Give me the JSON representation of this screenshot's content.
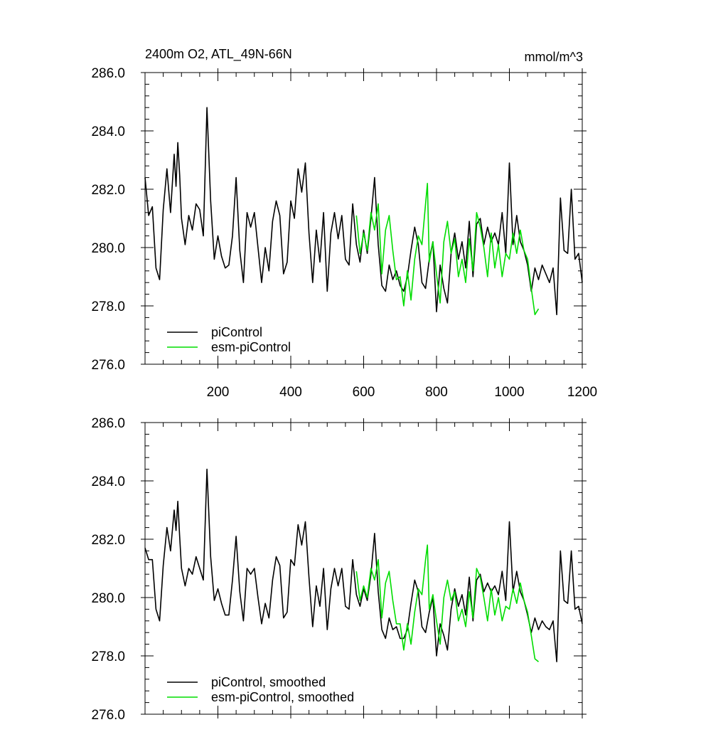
{
  "header": {
    "title": "2400m O2, ATL_49N-66N",
    "units": "mmol/m^3"
  },
  "colors": {
    "piControl": "#000000",
    "esm_piControl": "#00dd00"
  },
  "chart_data": [
    {
      "type": "line",
      "title": "2400m O2, ATL_49N-66N",
      "ylabel": "mmol/m^3",
      "xlim": [
        0,
        1200
      ],
      "ylim": [
        276,
        286
      ],
      "xticks": [
        "200",
        "400",
        "600",
        "800",
        "1000",
        "1200"
      ],
      "yticks": [
        "286.0",
        "284.0",
        "282.0",
        "280.0",
        "278.0",
        "276.0"
      ],
      "legend_position": "bottom-left",
      "series": [
        {
          "name": "piControl",
          "color": "#000000",
          "x": [
            0,
            10,
            20,
            30,
            40,
            50,
            60,
            70,
            80,
            85,
            90,
            95,
            100,
            110,
            120,
            130,
            140,
            150,
            160,
            170,
            180,
            190,
            200,
            210,
            220,
            230,
            240,
            250,
            260,
            270,
            280,
            290,
            300,
            310,
            320,
            330,
            340,
            350,
            360,
            370,
            380,
            390,
            400,
            410,
            420,
            430,
            440,
            450,
            460,
            470,
            480,
            490,
            500,
            510,
            520,
            530,
            540,
            550,
            560,
            570,
            580,
            590,
            600,
            610,
            620,
            630,
            640,
            650,
            660,
            670,
            680,
            690,
            700,
            710,
            720,
            730,
            740,
            750,
            760,
            770,
            780,
            790,
            800,
            810,
            820,
            830,
            840,
            850,
            860,
            870,
            880,
            890,
            900,
            910,
            920,
            930,
            940,
            950,
            960,
            970,
            980,
            990,
            1000,
            1010,
            1020,
            1030,
            1040,
            1050,
            1060,
            1070,
            1080,
            1090,
            1100,
            1110,
            1120,
            1130,
            1140,
            1150,
            1160,
            1170,
            1180,
            1190,
            1200
          ],
          "y": [
            282.4,
            281.1,
            281.4,
            279.3,
            278.9,
            281.3,
            282.7,
            281.2,
            283.2,
            282.1,
            283.6,
            282.5,
            281.0,
            280.1,
            281.1,
            280.6,
            281.5,
            281.3,
            280.4,
            284.8,
            281.6,
            279.6,
            280.4,
            279.7,
            279.3,
            279.4,
            280.4,
            282.4,
            279.9,
            278.8,
            281.2,
            280.7,
            281.2,
            280.0,
            278.8,
            280.0,
            279.2,
            280.9,
            281.6,
            281.1,
            279.1,
            279.5,
            281.6,
            281.0,
            282.7,
            281.9,
            282.9,
            280.5,
            278.8,
            280.6,
            279.5,
            281.2,
            278.5,
            280.5,
            281.2,
            280.3,
            281.1,
            279.6,
            279.4,
            281.5,
            280.1,
            279.5,
            280.6,
            279.8,
            281.0,
            282.4,
            280.1,
            278.7,
            278.5,
            279.4,
            278.9,
            279.2,
            278.7,
            278.5,
            279.0,
            279.9,
            280.7,
            280.1,
            278.8,
            278.6,
            279.6,
            280.2,
            277.8,
            279.4,
            278.6,
            278.1,
            279.8,
            280.5,
            279.6,
            280.2,
            279.3,
            280.9,
            279.0,
            280.8,
            281.0,
            280.1,
            280.7,
            280.2,
            280.5,
            280.1,
            281.2,
            279.8,
            282.9,
            280.1,
            281.1,
            280.2,
            279.9,
            279.4,
            278.5,
            279.3,
            278.9,
            279.4,
            279.1,
            278.8,
            279.3,
            277.7,
            281.7,
            279.9,
            279.8,
            282.0,
            279.6,
            279.8,
            278.8
          ]
        },
        {
          "name": "esm-piControl",
          "color": "#00dd00",
          "x": [
            580,
            590,
            600,
            610,
            620,
            630,
            640,
            650,
            660,
            670,
            680,
            690,
            700,
            710,
            720,
            730,
            740,
            750,
            760,
            770,
            775,
            780,
            790,
            800,
            810,
            820,
            830,
            840,
            850,
            860,
            870,
            880,
            890,
            900,
            910,
            920,
            930,
            940,
            950,
            960,
            970,
            980,
            990,
            1000,
            1010,
            1020,
            1030,
            1040,
            1050,
            1060,
            1070,
            1080
          ],
          "y": [
            281.1,
            279.8,
            280.5,
            279.9,
            281.2,
            280.6,
            281.5,
            279.1,
            280.6,
            281.1,
            279.9,
            278.9,
            279.0,
            278.0,
            279.2,
            278.2,
            279.6,
            280.4,
            280.1,
            281.5,
            282.2,
            279.5,
            280.2,
            279.1,
            278.1,
            280.2,
            280.9,
            279.8,
            280.3,
            279.0,
            279.6,
            278.8,
            280.3,
            279.2,
            281.2,
            280.7,
            280.0,
            279.0,
            280.5,
            279.3,
            280.1,
            279.0,
            279.8,
            279.6,
            280.5,
            279.8,
            280.6,
            279.9,
            279.6,
            278.6,
            277.7,
            277.9
          ]
        }
      ]
    },
    {
      "type": "line",
      "title": "",
      "ylabel": "",
      "xlim": [
        0,
        1200
      ],
      "ylim": [
        276,
        286
      ],
      "xticks": [],
      "yticks": [
        "286.0",
        "284.0",
        "282.0",
        "280.0",
        "278.0",
        "276.0"
      ],
      "legend_position": "bottom-left",
      "series": [
        {
          "name": "piControl, smoothed",
          "color": "#000000",
          "x": [
            0,
            10,
            20,
            30,
            40,
            50,
            60,
            70,
            80,
            85,
            90,
            95,
            100,
            110,
            120,
            130,
            140,
            150,
            160,
            170,
            180,
            190,
            200,
            210,
            220,
            230,
            240,
            250,
            260,
            270,
            280,
            290,
            300,
            310,
            320,
            330,
            340,
            350,
            360,
            370,
            380,
            390,
            400,
            410,
            420,
            430,
            440,
            450,
            460,
            470,
            480,
            490,
            500,
            510,
            520,
            530,
            540,
            550,
            560,
            570,
            580,
            590,
            600,
            610,
            620,
            630,
            640,
            650,
            660,
            670,
            680,
            690,
            700,
            710,
            720,
            730,
            740,
            750,
            760,
            770,
            780,
            790,
            800,
            810,
            820,
            830,
            840,
            850,
            860,
            870,
            880,
            890,
            900,
            910,
            920,
            930,
            940,
            950,
            960,
            970,
            980,
            990,
            1000,
            1010,
            1020,
            1030,
            1040,
            1050,
            1060,
            1070,
            1080,
            1090,
            1100,
            1110,
            1120,
            1130,
            1140,
            1150,
            1160,
            1170,
            1180,
            1190,
            1200
          ],
          "y": [
            281.7,
            281.3,
            281.3,
            279.6,
            279.2,
            281.1,
            282.4,
            281.6,
            283.0,
            282.3,
            283.3,
            282.1,
            281.0,
            280.4,
            281.0,
            280.8,
            281.4,
            281.0,
            280.6,
            284.4,
            281.4,
            279.9,
            280.3,
            279.8,
            279.4,
            279.4,
            280.6,
            282.1,
            280.2,
            279.2,
            281.0,
            280.8,
            281.0,
            280.0,
            279.1,
            279.8,
            279.3,
            280.6,
            281.4,
            281.1,
            279.3,
            279.5,
            281.3,
            281.1,
            282.5,
            281.8,
            282.6,
            280.7,
            279.0,
            280.4,
            279.7,
            281.0,
            278.9,
            280.3,
            281.0,
            280.4,
            281.0,
            279.7,
            279.6,
            281.3,
            280.1,
            279.7,
            280.3,
            279.9,
            280.8,
            282.2,
            280.2,
            278.9,
            278.6,
            279.3,
            278.9,
            279.0,
            278.6,
            278.6,
            278.9,
            279.8,
            280.6,
            280.2,
            279.0,
            278.8,
            279.5,
            280.0,
            278.0,
            279.1,
            278.7,
            278.2,
            279.6,
            280.3,
            279.7,
            280.1,
            279.4,
            280.7,
            279.2,
            280.6,
            280.8,
            280.2,
            280.5,
            280.2,
            280.4,
            280.1,
            280.9,
            279.9,
            282.6,
            280.2,
            280.9,
            280.2,
            279.9,
            279.4,
            278.8,
            279.3,
            278.9,
            279.2,
            279.0,
            278.9,
            279.2,
            277.8,
            281.6,
            279.9,
            279.8,
            281.6,
            279.6,
            279.7,
            279.1
          ]
        },
        {
          "name": "esm-piControl, smoothed",
          "color": "#00dd00",
          "x": [
            580,
            590,
            600,
            610,
            620,
            630,
            640,
            650,
            660,
            670,
            680,
            690,
            700,
            710,
            720,
            730,
            740,
            750,
            760,
            770,
            775,
            780,
            790,
            800,
            810,
            820,
            830,
            840,
            850,
            860,
            870,
            880,
            890,
            900,
            910,
            920,
            930,
            940,
            950,
            960,
            970,
            980,
            990,
            1000,
            1010,
            1020,
            1030,
            1040,
            1050,
            1060,
            1070,
            1080
          ],
          "y": [
            280.9,
            279.9,
            280.4,
            280.0,
            281.0,
            280.6,
            281.3,
            279.3,
            280.5,
            280.9,
            279.9,
            279.1,
            279.1,
            278.2,
            279.1,
            278.4,
            279.5,
            280.3,
            280.1,
            281.3,
            281.8,
            279.6,
            280.1,
            279.2,
            278.4,
            280.0,
            280.6,
            279.9,
            280.2,
            279.2,
            279.6,
            279.0,
            280.2,
            279.3,
            281.0,
            280.7,
            280.0,
            279.2,
            280.3,
            279.4,
            280.0,
            279.2,
            279.7,
            279.6,
            280.3,
            279.8,
            280.5,
            279.9,
            279.5,
            278.7,
            277.9,
            277.8
          ]
        }
      ]
    }
  ]
}
